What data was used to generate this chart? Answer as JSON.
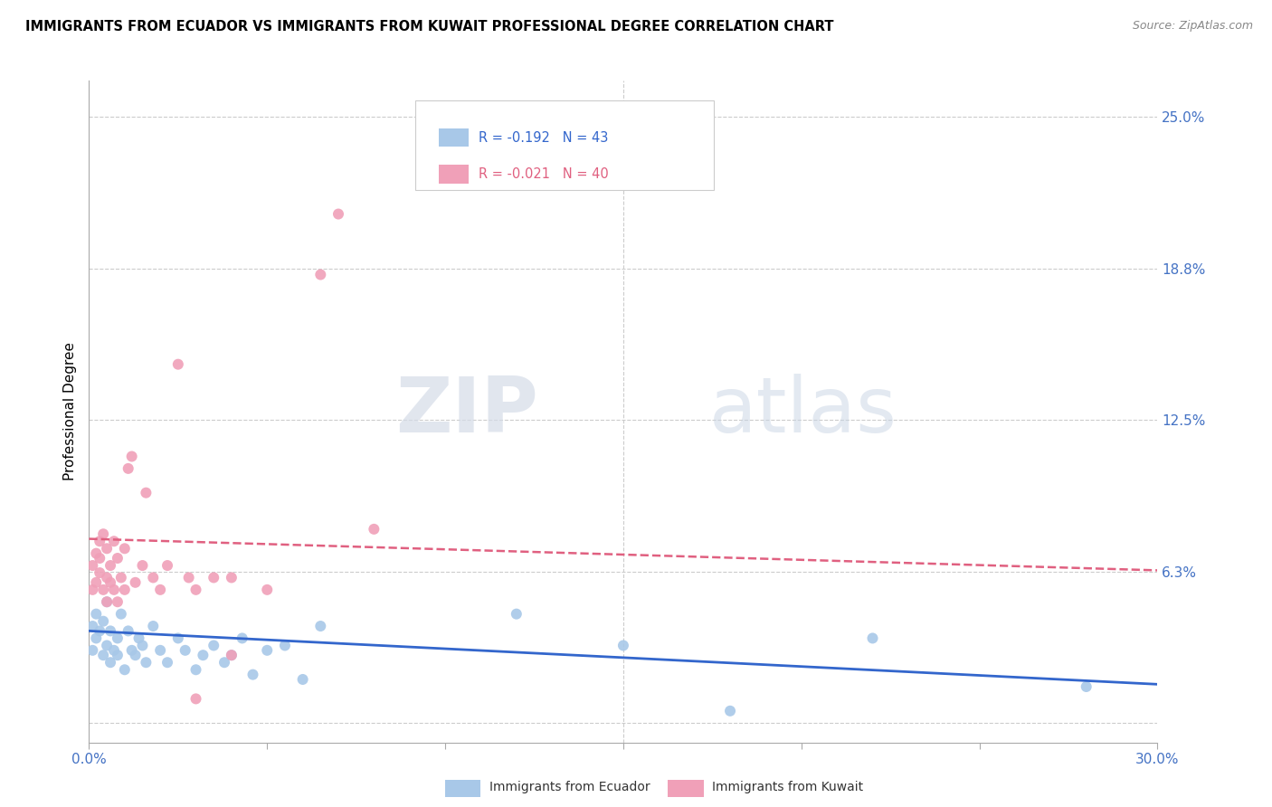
{
  "title": "IMMIGRANTS FROM ECUADOR VS IMMIGRANTS FROM KUWAIT PROFESSIONAL DEGREE CORRELATION CHART",
  "source": "Source: ZipAtlas.com",
  "ylabel": "Professional Degree",
  "xmin": 0.0,
  "xmax": 0.3,
  "ymin": -0.008,
  "ymax": 0.265,
  "yticks": [
    0.0,
    0.0625,
    0.125,
    0.1875,
    0.25
  ],
  "ytick_labels": [
    "",
    "6.3%",
    "12.5%",
    "18.8%",
    "25.0%"
  ],
  "xticks": [
    0.0,
    0.05,
    0.1,
    0.15,
    0.2,
    0.25,
    0.3
  ],
  "ecuador_color": "#a8c8e8",
  "kuwait_color": "#f0a0b8",
  "ecuador_line_color": "#3366cc",
  "kuwait_line_color": "#e06080",
  "R_ecuador": "-0.192",
  "N_ecuador": "43",
  "R_kuwait": "-0.021",
  "N_kuwait": "40",
  "watermark_zip": "ZIP",
  "watermark_atlas": "atlas",
  "ecuador_x": [
    0.001,
    0.001,
    0.002,
    0.002,
    0.003,
    0.004,
    0.004,
    0.005,
    0.005,
    0.006,
    0.006,
    0.007,
    0.008,
    0.008,
    0.009,
    0.01,
    0.011,
    0.012,
    0.013,
    0.014,
    0.015,
    0.016,
    0.018,
    0.02,
    0.022,
    0.025,
    0.027,
    0.03,
    0.032,
    0.035,
    0.038,
    0.04,
    0.043,
    0.046,
    0.05,
    0.055,
    0.06,
    0.065,
    0.12,
    0.15,
    0.18,
    0.22,
    0.28
  ],
  "ecuador_y": [
    0.04,
    0.03,
    0.045,
    0.035,
    0.038,
    0.042,
    0.028,
    0.05,
    0.032,
    0.025,
    0.038,
    0.03,
    0.035,
    0.028,
    0.045,
    0.022,
    0.038,
    0.03,
    0.028,
    0.035,
    0.032,
    0.025,
    0.04,
    0.03,
    0.025,
    0.035,
    0.03,
    0.022,
    0.028,
    0.032,
    0.025,
    0.028,
    0.035,
    0.02,
    0.03,
    0.032,
    0.018,
    0.04,
    0.045,
    0.032,
    0.005,
    0.035,
    0.015
  ],
  "kuwait_x": [
    0.001,
    0.001,
    0.002,
    0.002,
    0.003,
    0.003,
    0.003,
    0.004,
    0.004,
    0.005,
    0.005,
    0.005,
    0.006,
    0.006,
    0.007,
    0.007,
    0.008,
    0.008,
    0.009,
    0.01,
    0.01,
    0.011,
    0.012,
    0.013,
    0.015,
    0.016,
    0.018,
    0.02,
    0.022,
    0.025,
    0.028,
    0.03,
    0.035,
    0.04,
    0.05,
    0.065,
    0.07,
    0.08,
    0.04,
    0.03
  ],
  "kuwait_y": [
    0.055,
    0.065,
    0.058,
    0.07,
    0.062,
    0.075,
    0.068,
    0.055,
    0.078,
    0.06,
    0.072,
    0.05,
    0.065,
    0.058,
    0.075,
    0.055,
    0.068,
    0.05,
    0.06,
    0.055,
    0.072,
    0.105,
    0.11,
    0.058,
    0.065,
    0.095,
    0.06,
    0.055,
    0.065,
    0.148,
    0.06,
    0.055,
    0.06,
    0.06,
    0.055,
    0.185,
    0.21,
    0.08,
    0.028,
    0.01
  ],
  "ecuador_trend_x": [
    0.0,
    0.3
  ],
  "ecuador_trend_y": [
    0.038,
    0.016
  ],
  "kuwait_trend_x": [
    0.0,
    0.3
  ],
  "kuwait_trend_y": [
    0.076,
    0.063
  ],
  "legend_ecuador_label": "Immigrants from Ecuador",
  "legend_kuwait_label": "Immigrants from Kuwait"
}
